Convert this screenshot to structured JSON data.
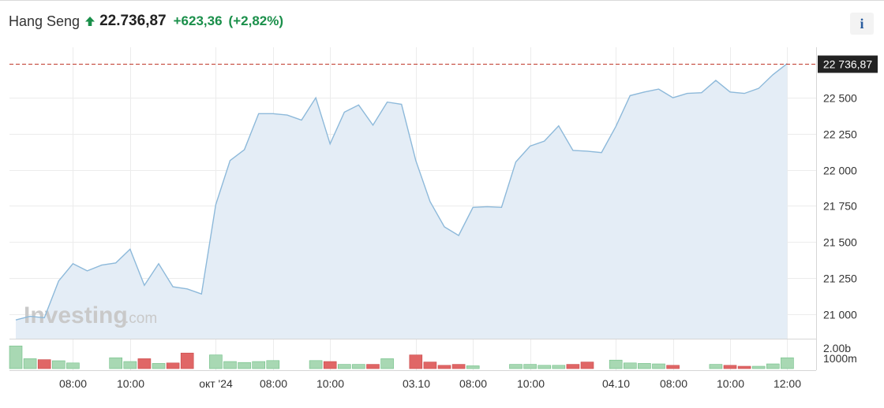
{
  "header": {
    "name": "Hang Seng",
    "price": "22.736,87",
    "change": "+623,36",
    "change_pct": "(+2,82%)",
    "direction_icon": "arrow-up-icon"
  },
  "info_button": {
    "label": "i"
  },
  "watermark": {
    "brand": "Investing",
    "suffix": ".com"
  },
  "colors": {
    "up": "#1a8f4a",
    "line": "#8db9da",
    "area": "#e4edf6",
    "volume_up": "#a8d8b3",
    "volume_down": "#e06666",
    "last_price_line": "#c0392b",
    "last_price_label_bg": "#222222"
  },
  "chart_data": {
    "type": "area",
    "title": "Hang Seng",
    "ylim": [
      20830,
      22850
    ],
    "y_ticks": [
      21000,
      21250,
      21500,
      21750,
      22000,
      22250,
      22500
    ],
    "y_tick_labels": [
      "21 000",
      "21 250",
      "21 500",
      "21 750",
      "22 000",
      "22 250",
      "22 500"
    ],
    "last_value": 22736.87,
    "last_value_label": "22 736,87",
    "x_tick_labels": [
      "08:00",
      "10:00",
      "окт '24",
      "08:00",
      "10:00",
      "03.10",
      "08:00",
      "10:00",
      "04.10",
      "08:00",
      "10:00",
      "12:00"
    ],
    "x_tick_positions": [
      4,
      8,
      14,
      18,
      22,
      28,
      32,
      36,
      42,
      46,
      50,
      54
    ],
    "grid": true,
    "values": [
      20960,
      20985,
      20975,
      21230,
      21350,
      21300,
      21340,
      21355,
      21450,
      21200,
      21350,
      21190,
      21175,
      21140,
      21760,
      22065,
      22140,
      22390,
      22390,
      22380,
      22345,
      22500,
      22180,
      22400,
      22450,
      22310,
      22470,
      22455,
      22065,
      21780,
      21605,
      21545,
      21740,
      21745,
      21740,
      22055,
      22165,
      22200,
      22305,
      22135,
      22130,
      22120,
      22300,
      22515,
      22540,
      22560,
      22500,
      22530,
      22535,
      22620,
      22540,
      22530,
      22565,
      22660,
      22737
    ],
    "volume": {
      "y_tick_labels": [
        "2.00b",
        "1000m"
      ],
      "max": 2500,
      "bars": [
        {
          "i": 0,
          "v": 2400,
          "dir": "up"
        },
        {
          "i": 1,
          "v": 1050,
          "dir": "up"
        },
        {
          "i": 2,
          "v": 950,
          "dir": "down"
        },
        {
          "i": 3,
          "v": 830,
          "dir": "up"
        },
        {
          "i": 4,
          "v": 600,
          "dir": "up"
        },
        {
          "i": 7,
          "v": 1150,
          "dir": "up"
        },
        {
          "i": 8,
          "v": 750,
          "dir": "up"
        },
        {
          "i": 9,
          "v": 1050,
          "dir": "down"
        },
        {
          "i": 10,
          "v": 550,
          "dir": "up"
        },
        {
          "i": 11,
          "v": 600,
          "dir": "down"
        },
        {
          "i": 12,
          "v": 1650,
          "dir": "down"
        },
        {
          "i": 14,
          "v": 1450,
          "dir": "up"
        },
        {
          "i": 15,
          "v": 750,
          "dir": "up"
        },
        {
          "i": 16,
          "v": 650,
          "dir": "up"
        },
        {
          "i": 17,
          "v": 750,
          "dir": "up"
        },
        {
          "i": 18,
          "v": 850,
          "dir": "up"
        },
        {
          "i": 21,
          "v": 850,
          "dir": "up"
        },
        {
          "i": 22,
          "v": 750,
          "dir": "down"
        },
        {
          "i": 23,
          "v": 450,
          "dir": "up"
        },
        {
          "i": 24,
          "v": 450,
          "dir": "up"
        },
        {
          "i": 25,
          "v": 450,
          "dir": "down"
        },
        {
          "i": 26,
          "v": 1050,
          "dir": "up"
        },
        {
          "i": 28,
          "v": 1450,
          "dir": "down"
        },
        {
          "i": 29,
          "v": 700,
          "dir": "down"
        },
        {
          "i": 30,
          "v": 350,
          "dir": "down"
        },
        {
          "i": 31,
          "v": 450,
          "dir": "down"
        },
        {
          "i": 32,
          "v": 300,
          "dir": "up"
        },
        {
          "i": 35,
          "v": 450,
          "dir": "up"
        },
        {
          "i": 36,
          "v": 450,
          "dir": "up"
        },
        {
          "i": 37,
          "v": 350,
          "dir": "up"
        },
        {
          "i": 38,
          "v": 350,
          "dir": "up"
        },
        {
          "i": 39,
          "v": 450,
          "dir": "down"
        },
        {
          "i": 40,
          "v": 700,
          "dir": "down"
        },
        {
          "i": 42,
          "v": 900,
          "dir": "up"
        },
        {
          "i": 43,
          "v": 600,
          "dir": "up"
        },
        {
          "i": 44,
          "v": 550,
          "dir": "up"
        },
        {
          "i": 45,
          "v": 500,
          "dir": "up"
        },
        {
          "i": 46,
          "v": 350,
          "dir": "down"
        },
        {
          "i": 49,
          "v": 450,
          "dir": "up"
        },
        {
          "i": 50,
          "v": 350,
          "dir": "down"
        },
        {
          "i": 51,
          "v": 250,
          "dir": "down"
        },
        {
          "i": 52,
          "v": 250,
          "dir": "up"
        },
        {
          "i": 53,
          "v": 500,
          "dir": "up"
        },
        {
          "i": 54,
          "v": 1150,
          "dir": "up"
        }
      ]
    }
  }
}
